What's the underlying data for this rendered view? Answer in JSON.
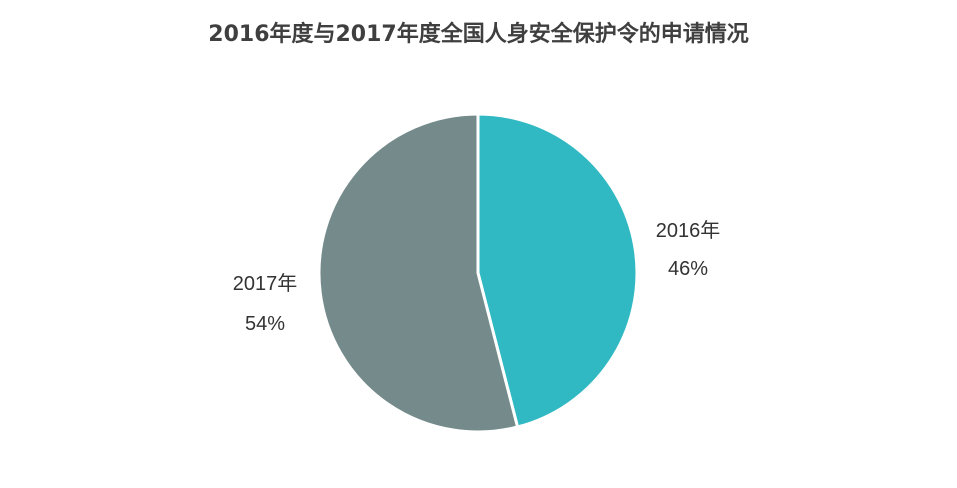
{
  "chart_data": {
    "type": "pie",
    "title": "2016年度与2017年度全国人身安全保护令的申请情况",
    "slices": [
      {
        "label": "2016年",
        "value": 46,
        "value_label": "46%",
        "color": "#31b9c3"
      },
      {
        "label": "2017年",
        "value": 54,
        "value_label": "54%",
        "color": "#758b8b"
      }
    ],
    "start_angle": "12 o'clock",
    "direction": "clockwise",
    "legend": "none"
  }
}
